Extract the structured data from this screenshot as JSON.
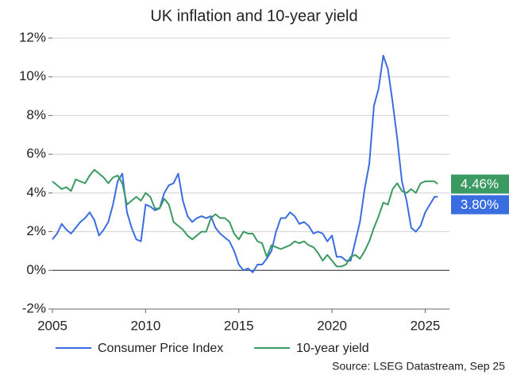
{
  "chart_data": {
    "type": "line",
    "title": "UK inflation and 10-year yield",
    "source": "Source: LSEG Datastream, Sep 25",
    "x": [
      2005,
      2005.25,
      2005.5,
      2005.75,
      2006,
      2006.25,
      2006.5,
      2006.75,
      2007,
      2007.25,
      2007.5,
      2007.75,
      2008,
      2008.25,
      2008.5,
      2008.75,
      2009,
      2009.25,
      2009.5,
      2009.75,
      2010,
      2010.25,
      2010.5,
      2010.75,
      2011,
      2011.25,
      2011.5,
      2011.75,
      2012,
      2012.25,
      2012.5,
      2012.75,
      2013,
      2013.25,
      2013.5,
      2013.75,
      2014,
      2014.25,
      2014.5,
      2014.75,
      2015,
      2015.25,
      2015.5,
      2015.75,
      2016,
      2016.25,
      2016.5,
      2016.75,
      2017,
      2017.25,
      2017.5,
      2017.75,
      2018,
      2018.25,
      2018.5,
      2018.75,
      2019,
      2019.25,
      2019.5,
      2019.75,
      2020,
      2020.25,
      2020.5,
      2020.75,
      2021,
      2021.25,
      2021.5,
      2021.75,
      2022,
      2022.25,
      2022.5,
      2022.75,
      2023,
      2023.25,
      2023.5,
      2023.75,
      2024,
      2024.25,
      2024.5,
      2024.75,
      2025,
      2025.25,
      2025.5,
      2025.67
    ],
    "series": [
      {
        "name": "Consumer Price Index",
        "color": "#3a6ee0",
        "values": [
          1.6,
          1.9,
          2.4,
          2.1,
          1.9,
          2.2,
          2.5,
          2.7,
          3.0,
          2.6,
          1.8,
          2.1,
          2.5,
          3.4,
          4.6,
          5.0,
          3.0,
          2.2,
          1.6,
          1.5,
          3.4,
          3.3,
          3.1,
          3.2,
          4.0,
          4.4,
          4.5,
          5.0,
          3.6,
          2.8,
          2.5,
          2.7,
          2.8,
          2.7,
          2.8,
          2.2,
          1.9,
          1.7,
          1.5,
          1.0,
          0.3,
          0.0,
          0.1,
          -0.1,
          0.3,
          0.3,
          0.6,
          1.0,
          2.0,
          2.7,
          2.7,
          3.0,
          2.8,
          2.4,
          2.5,
          2.3,
          1.9,
          2.0,
          1.9,
          1.5,
          1.8,
          0.7,
          0.7,
          0.5,
          0.5,
          1.5,
          2.5,
          4.2,
          5.5,
          8.5,
          9.4,
          11.1,
          10.4,
          8.7,
          6.8,
          4.6,
          3.6,
          2.2,
          2.0,
          2.3,
          3.0,
          3.4,
          3.8,
          3.8
        ],
        "end_label": {
          "value": 3.8,
          "label": "3.80%"
        }
      },
      {
        "name": "10-year yield",
        "color": "#3a9a62",
        "values": [
          4.6,
          4.4,
          4.2,
          4.3,
          4.1,
          4.7,
          4.6,
          4.5,
          4.9,
          5.2,
          5.0,
          4.8,
          4.5,
          4.8,
          4.9,
          4.5,
          3.4,
          3.6,
          3.8,
          3.6,
          4.0,
          3.8,
          3.2,
          3.2,
          3.7,
          3.4,
          2.5,
          2.3,
          2.1,
          1.8,
          1.6,
          1.8,
          2.0,
          2.0,
          2.7,
          2.9,
          2.7,
          2.7,
          2.5,
          1.9,
          1.6,
          2.0,
          1.9,
          1.9,
          1.5,
          1.4,
          0.7,
          1.3,
          1.2,
          1.1,
          1.2,
          1.3,
          1.5,
          1.4,
          1.5,
          1.3,
          1.2,
          0.9,
          0.5,
          0.8,
          0.5,
          0.2,
          0.2,
          0.3,
          0.7,
          0.8,
          0.6,
          1.0,
          1.5,
          2.2,
          2.8,
          3.5,
          3.4,
          4.2,
          4.5,
          4.1,
          4.0,
          4.2,
          4.0,
          4.5,
          4.6,
          4.6,
          4.6,
          4.46
        ],
        "end_label": {
          "value": 4.46,
          "label": "4.46%"
        }
      }
    ],
    "xlim": [
      2005,
      2026.3
    ],
    "xticks": [
      2005,
      2010,
      2015,
      2020,
      2025
    ],
    "ylim": [
      -2,
      12
    ],
    "yticks": [
      {
        "value": -2,
        "label": "-2%"
      },
      {
        "value": 0,
        "label": "0%"
      },
      {
        "value": 2,
        "label": "2%"
      },
      {
        "value": 4,
        "label": "4%"
      },
      {
        "value": 6,
        "label": "6%"
      },
      {
        "value": 8,
        "label": "8%"
      },
      {
        "value": 10,
        "label": "10%"
      },
      {
        "value": 12,
        "label": "12%"
      }
    ],
    "grid": true
  }
}
